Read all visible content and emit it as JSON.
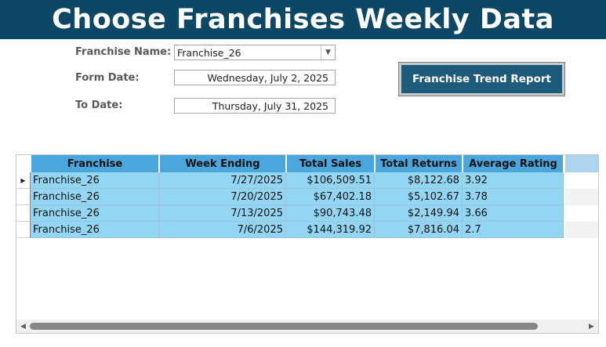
{
  "banner": {
    "title": "Choose Franchises Weekly Data"
  },
  "form": {
    "franchise_name_label": "Franchise Name:",
    "franchise_name_value": "Franchise_26",
    "form_date_label": "Form Date:",
    "form_date_value": "Wednesday, July 2, 2025",
    "to_date_label": "To Date:",
    "to_date_value": "Thursday, July 31, 2025"
  },
  "report_button": {
    "label": "Franchise Trend Report"
  },
  "table": {
    "columns": [
      "Franchise",
      "Week Ending",
      "Total Sales",
      "Total Returns",
      "Average Rating"
    ],
    "rows": [
      [
        "Franchise_26",
        "7/27/2025",
        "$106,509.51",
        "$8,122.68",
        "3.92"
      ],
      [
        "Franchise_26",
        "7/20/2025",
        "$67,402.18",
        "$5,102.67",
        "3.78"
      ],
      [
        "Franchise_26",
        "7/13/2025",
        "$90,743.48",
        "$2,149.94",
        "3.66"
      ],
      [
        "Franchise_26",
        "7/6/2025",
        "$144,319.92",
        "$7,816.04",
        "2.7"
      ]
    ]
  },
  "colors": {
    "banner": "#0d4766",
    "header": "#4aa6dc",
    "row": "#93d6f3",
    "button": "#1e5a79"
  },
  "icons": {
    "dropdown": "chevron-down-icon",
    "row_pointer": "row-pointer-icon"
  }
}
